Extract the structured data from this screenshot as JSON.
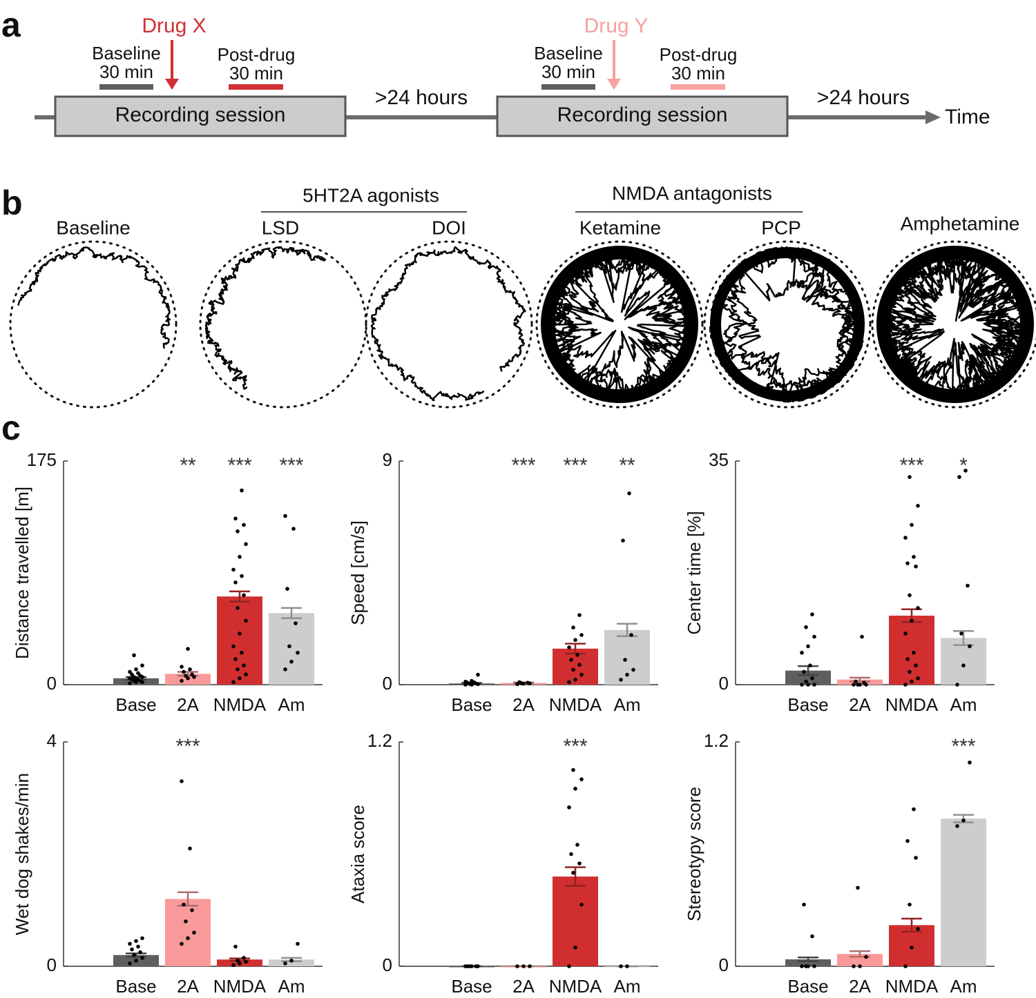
{
  "panel_a": {
    "label": "a",
    "sessions": [
      {
        "drug": "Drug X",
        "drug_color": "#d03035",
        "baseline": "Baseline",
        "baseline_duration": "30 min",
        "post": "Post-drug",
        "post_duration": "30 min",
        "box": "Recording session",
        "gap": ">24 hours"
      },
      {
        "drug": "Drug Y",
        "drug_color": "#f7a1a1",
        "baseline": "Baseline",
        "baseline_duration": "30 min",
        "post": "Post-drug",
        "post_duration": "30 min",
        "box": "Recording session",
        "gap": ">24 hours"
      }
    ],
    "axis_label": "Time"
  },
  "panel_b": {
    "label": "b",
    "groups": [
      "5HT2A agonists",
      "NMDA antagonists"
    ],
    "arenas": [
      "Baseline",
      "LSD",
      "DOI",
      "Ketamine",
      "PCP",
      "Amphetamine"
    ]
  },
  "panel_c": {
    "label": "c"
  },
  "chart_data": [
    {
      "type": "bar",
      "ylabel": "Distance travelled [m]",
      "categories": [
        "Base",
        "2A",
        "NMDA",
        "Am"
      ],
      "colors": [
        "#5f5f5f",
        "#f99a9a",
        "#d12f2f",
        "#cdcdcd"
      ],
      "values": [
        5,
        8.5,
        69,
        56
      ],
      "errors": [
        1,
        1.5,
        4,
        4
      ],
      "points": [
        [
          1,
          2,
          2,
          3,
          3,
          4,
          4,
          5,
          5,
          6,
          6,
          7,
          8,
          9,
          10,
          12,
          15,
          23
        ],
        [
          3,
          5,
          6,
          7,
          8,
          10,
          12,
          14,
          28
        ],
        [
          2,
          5,
          8,
          12,
          15,
          20,
          25,
          30,
          40,
          50,
          60,
          70,
          80,
          85,
          90,
          100,
          110,
          120,
          125,
          130,
          152
        ],
        [
          12,
          18,
          25,
          30,
          48,
          75,
          122,
          132
        ]
      ],
      "significance": [
        null,
        "**",
        "***",
        "***"
      ],
      "ylim": [
        0,
        175
      ],
      "yticks": [
        0,
        175
      ]
    },
    {
      "type": "bar",
      "ylabel": "Speed [cm/s]",
      "categories": [
        "Base",
        "2A",
        "NMDA",
        "Am"
      ],
      "colors": [
        "#5f5f5f",
        "#f99a9a",
        "#d12f2f",
        "#cdcdcd"
      ],
      "values": [
        0.05,
        0.07,
        1.45,
        2.2
      ],
      "errors": [
        0.02,
        0.02,
        0.2,
        0.25
      ],
      "points": [
        [
          0,
          0,
          0.02,
          0.03,
          0.05,
          0.08,
          0.1,
          0.12,
          0.15,
          0.4
        ],
        [
          0.02,
          0.04,
          0.05,
          0.06,
          0.08,
          0.1
        ],
        [
          0.1,
          0.2,
          0.4,
          0.6,
          0.8,
          1,
          1.2,
          1.5,
          1.8,
          2,
          2.3,
          2.8
        ],
        [
          0.2,
          0.4,
          0.6,
          1,
          2,
          5.8,
          7.7
        ]
      ],
      "significance": [
        null,
        "***",
        "***",
        "**"
      ],
      "ylim": [
        0,
        9
      ],
      "yticks": [
        0,
        9
      ]
    },
    {
      "type": "bar",
      "ylabel": "Center time [%]",
      "categories": [
        "Base",
        "2A",
        "NMDA",
        "Am"
      ],
      "colors": [
        "#5f5f5f",
        "#f99a9a",
        "#d12f2f",
        "#cdcdcd"
      ],
      "values": [
        2.2,
        0.8,
        10.8,
        7.3
      ],
      "errors": [
        0.7,
        0.3,
        1,
        1.1
      ],
      "points": [
        [
          0,
          0,
          0,
          0.5,
          1,
          2,
          3,
          5,
          6,
          7.5,
          9,
          11
        ],
        [
          0,
          0,
          0,
          0,
          0.3,
          0.5,
          7.5
        ],
        [
          0,
          0.5,
          1,
          2,
          3,
          4,
          5,
          8,
          10,
          12,
          14,
          18.5,
          19,
          20,
          23,
          25,
          28,
          32.5
        ],
        [
          0,
          3,
          6,
          8,
          15.5,
          32.5,
          33.5
        ]
      ],
      "significance": [
        null,
        null,
        "***",
        "*"
      ],
      "ylim": [
        0,
        35
      ],
      "yticks": [
        0,
        35
      ]
    },
    {
      "type": "bar",
      "ylabel": "Wet dog shakes/min",
      "categories": [
        "Base",
        "2A",
        "NMDA",
        "Am"
      ],
      "colors": [
        "#5f5f5f",
        "#f99a9a",
        "#d12f2f",
        "#cdcdcd"
      ],
      "values": [
        0.2,
        1.2,
        0.12,
        0.12
      ],
      "errors": [
        0.03,
        0.12,
        0.02,
        0.03
      ],
      "points": [
        [
          0.05,
          0.1,
          0.15,
          0.2,
          0.25,
          0.3,
          0.35,
          0.4,
          0.45,
          0.5
        ],
        [
          0.4,
          0.5,
          0.6,
          0.8,
          1,
          1.1,
          2.1,
          3.3
        ],
        [
          0.02,
          0.05,
          0.08,
          0.1,
          0.15,
          0.35
        ],
        [
          0.05,
          0.1,
          0.4
        ]
      ],
      "significance": [
        null,
        "***",
        null,
        null
      ],
      "ylim": [
        0,
        4
      ],
      "yticks": [
        0,
        4
      ]
    },
    {
      "type": "bar",
      "ylabel": "Ataxia score",
      "categories": [
        "Base",
        "2A",
        "NMDA",
        "Am"
      ],
      "colors": [
        "#5f5f5f",
        "#f99a9a",
        "#d12f2f",
        "#cdcdcd"
      ],
      "values": [
        0,
        0,
        0.48,
        0
      ],
      "errors": [
        0,
        0,
        0.05,
        0
      ],
      "points": [
        [
          0,
          0,
          0,
          0,
          0,
          0
        ],
        [
          0,
          0,
          0
        ],
        [
          0,
          0.1,
          0.33,
          0.5,
          0.55,
          0.6,
          0.65,
          0.85,
          0.95,
          1,
          1.05
        ],
        [
          0,
          0
        ]
      ],
      "significance": [
        null,
        null,
        "***",
        null
      ],
      "ylim": [
        0,
        1.2
      ],
      "yticks": [
        0,
        1.2
      ]
    },
    {
      "type": "bar",
      "ylabel": "Stereotypy score",
      "categories": [
        "Base",
        "2A",
        "NMDA",
        "Am"
      ],
      "colors": [
        "#5f5f5f",
        "#f99a9a",
        "#d12f2f",
        "#cdcdcd"
      ],
      "values": [
        0.037,
        0.066,
        0.22,
        0.79
      ],
      "errors": [
        0.01,
        0.015,
        0.035,
        0.02
      ],
      "points": [
        [
          0,
          0,
          0,
          0,
          0.16,
          0.33
        ],
        [
          0,
          0,
          0.05,
          0.42
        ],
        [
          0,
          0.1,
          0.2,
          0.33,
          0.58,
          0.67,
          0.84
        ],
        [
          0.75,
          0.78,
          1.09
        ]
      ],
      "significance": [
        null,
        null,
        null,
        "***"
      ],
      "ylim": [
        0,
        1.2
      ],
      "yticks": [
        0,
        1.2
      ]
    }
  ]
}
